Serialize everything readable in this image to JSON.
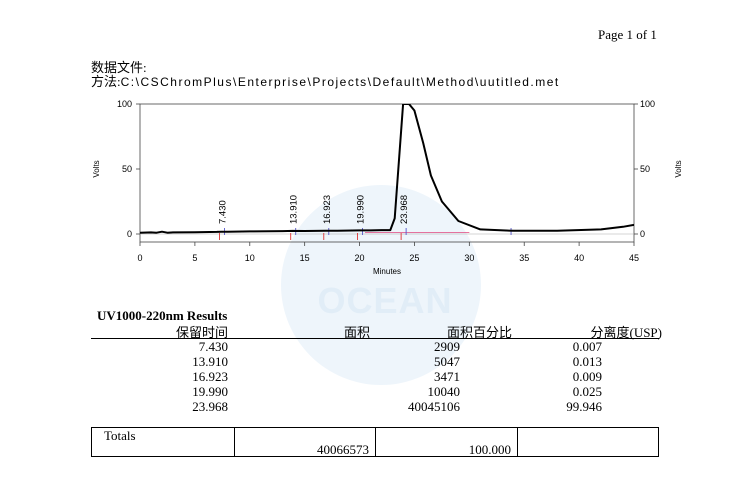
{
  "header": {
    "page_label": "Page 1 of 1",
    "data_file_label": "数据文件:",
    "method_label": "方法:",
    "method_path": "C:\\CSChromPlus\\Enterprise\\Projects\\Default\\Method\\uutitled.met"
  },
  "watermark": {
    "text": "OCEAN"
  },
  "chart_data": {
    "type": "line",
    "xlabel": "Minutes",
    "ylabel": "Volts",
    "xlim": [
      0,
      45
    ],
    "ylim": [
      0,
      100
    ],
    "x_ticks": [
      "0",
      "5",
      "10",
      "15",
      "20",
      "25",
      "30",
      "35",
      "40",
      "45"
    ],
    "y_ticks": [
      "0",
      "50",
      "100"
    ],
    "y_ticks_right": [
      "0",
      "50",
      "100"
    ],
    "peak_labels": [
      "7.430",
      "13.910",
      "16.923",
      "19.990",
      "23.968"
    ],
    "peaks_rt": [
      7.43,
      13.91,
      16.923,
      19.99,
      23.968
    ],
    "series": [
      {
        "x": [
          0,
          1,
          1.5,
          2,
          2.5,
          3,
          5,
          7,
          7.43,
          8,
          10,
          13,
          13.91,
          15,
          16.923,
          18,
          19.99,
          21,
          22,
          22.8,
          23.2,
          23.968,
          24.5,
          25,
          25.8,
          26.5,
          27.5,
          29,
          31,
          34,
          38,
          42,
          44,
          45
        ],
        "y": [
          1,
          1.2,
          1,
          1.8,
          1,
          1.2,
          1.4,
          1.6,
          1.8,
          1.8,
          2,
          2.2,
          2.4,
          2.3,
          2.5,
          2.5,
          2.8,
          2.8,
          3,
          3,
          12,
          100,
          100,
          95,
          70,
          45,
          25,
          10,
          3.5,
          2.5,
          2.5,
          3.5,
          5.5,
          7
        ]
      }
    ]
  },
  "results": {
    "title": "UV1000-220nm Results",
    "columns": [
      "保留时间",
      "面积",
      "面积百分比",
      "分离度(USP)"
    ],
    "rows": [
      {
        "rt": "7.430",
        "area": "2909",
        "pct": "0.007"
      },
      {
        "rt": "13.910",
        "area": "5047",
        "pct": "0.013"
      },
      {
        "rt": "16.923",
        "area": "3471",
        "pct": "0.009"
      },
      {
        "rt": "19.990",
        "area": "10040",
        "pct": "0.025"
      },
      {
        "rt": "23.968",
        "area": "40045106",
        "pct": "99.946"
      }
    ],
    "totals": {
      "label": "Totals",
      "area": "40066573",
      "pct": "100.000"
    }
  }
}
